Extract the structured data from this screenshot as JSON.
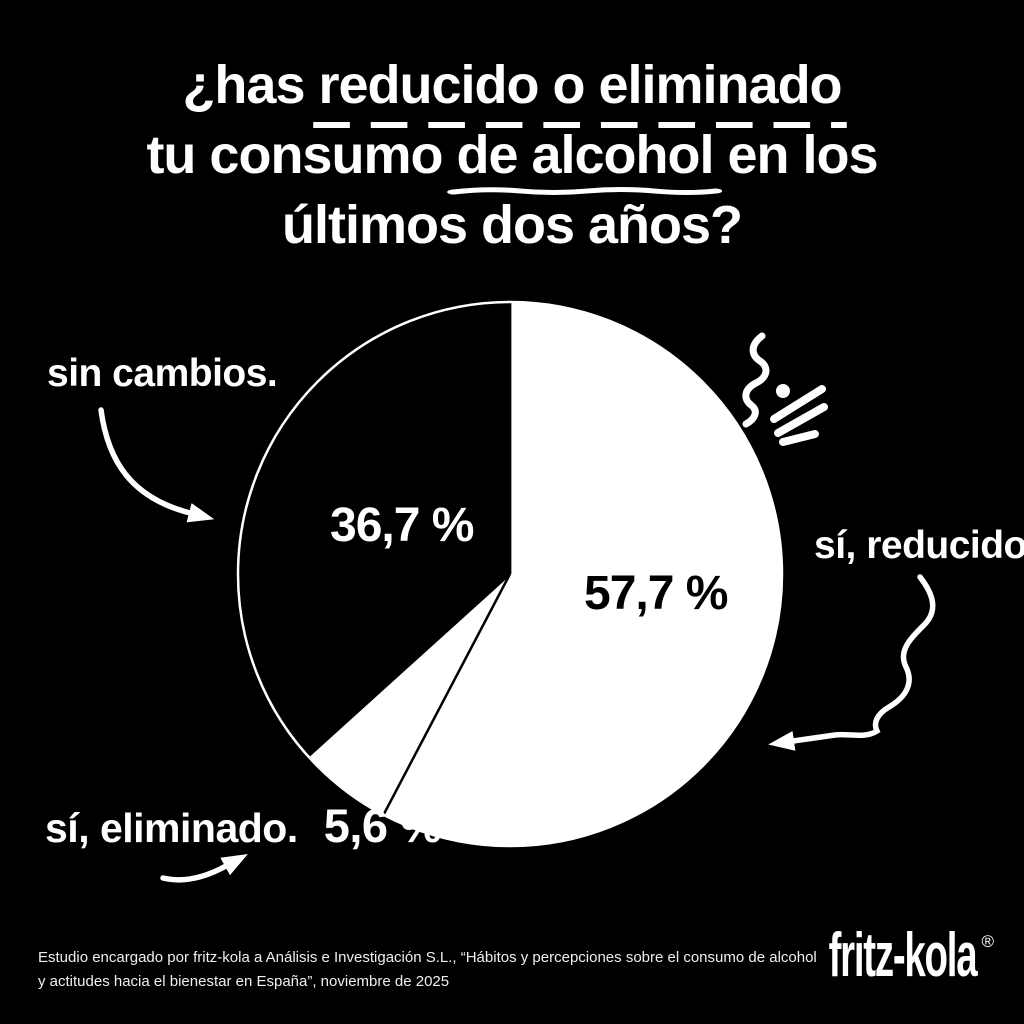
{
  "colors": {
    "background": "#000000",
    "foreground": "#ffffff"
  },
  "title": {
    "line1_prefix": "¿has ",
    "line1_underlined": "reducido o eliminado",
    "line2_prefix": "tu consumo ",
    "line2_underlined": "de alcohol",
    "line2_suffix": " en los",
    "line3": "últimos dos años?"
  },
  "chart_data": {
    "type": "pie",
    "title": "¿has reducido o eliminado tu consumo de alcohol en los últimos dos años?",
    "start_angle_deg": 0,
    "direction": "clockwise",
    "legend_position": "around",
    "slices": [
      {
        "label": "sí, reducido.",
        "value": 57.7,
        "display": "57,7 %",
        "color": "#ffffff",
        "label_position": "right"
      },
      {
        "label": "sí, eliminado.",
        "value": 5.6,
        "display": "5,6 %",
        "color": "#ffffff",
        "label_position": "bottom-left"
      },
      {
        "label": "sin cambios.",
        "value": 36.7,
        "display": "36,7 %",
        "color": "#000000",
        "label_position": "top-left"
      }
    ]
  },
  "footer": {
    "line1": "Estudio encargado por fritz-kola a Análisis e Investigación S.L., “Hábitos y percepciones sobre el consumo de alcohol",
    "line2": "y actitudes hacia el bienestar en España”, noviembre de 2025"
  },
  "logo": {
    "text": "fritz-kola",
    "registered": "®"
  }
}
